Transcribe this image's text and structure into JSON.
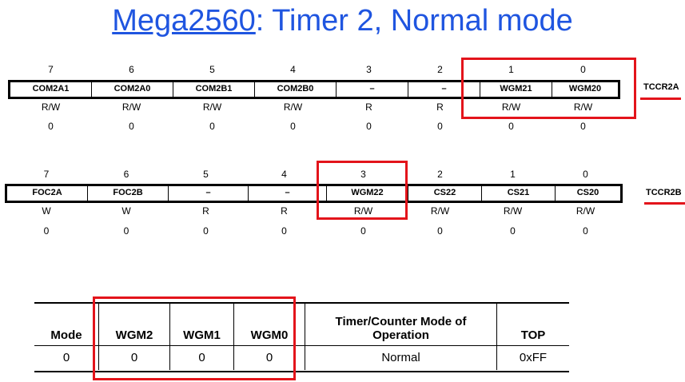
{
  "title": {
    "link_text": "Mega2560",
    "rest_text": ": Timer 2, Normal mode"
  },
  "tccr2a": {
    "name": "TCCR2A",
    "bit_numbers": [
      "7",
      "6",
      "5",
      "4",
      "3",
      "2",
      "1",
      "0"
    ],
    "bits": [
      "COM2A1",
      "COM2A0",
      "COM2B1",
      "COM2B0",
      "–",
      "–",
      "WGM21",
      "WGM20"
    ],
    "access": [
      "R/W",
      "R/W",
      "R/W",
      "R/W",
      "R",
      "R",
      "R/W",
      "R/W"
    ],
    "initial": [
      "0",
      "0",
      "0",
      "0",
      "0",
      "0",
      "0",
      "0"
    ]
  },
  "tccr2b": {
    "name": "TCCR2B",
    "bit_numbers": [
      "7",
      "6",
      "5",
      "4",
      "3",
      "2",
      "1",
      "0"
    ],
    "bits": [
      "FOC2A",
      "FOC2B",
      "–",
      "–",
      "WGM22",
      "CS22",
      "CS21",
      "CS20"
    ],
    "access": [
      "W",
      "W",
      "R",
      "R",
      "R/W",
      "R/W",
      "R/W",
      "R/W"
    ],
    "initial": [
      "0",
      "0",
      "0",
      "0",
      "0",
      "0",
      "0",
      "0"
    ]
  },
  "mode_table": {
    "headers": [
      "Mode",
      "WGM2",
      "WGM1",
      "WGM0",
      "Timer/Counter Mode of Operation",
      "TOP"
    ],
    "rows": [
      [
        "0",
        "0",
        "0",
        "0",
        "Normal",
        "0xFF"
      ]
    ]
  },
  "colors": {
    "title": "#1f55e0",
    "highlight": "#e3141b"
  }
}
